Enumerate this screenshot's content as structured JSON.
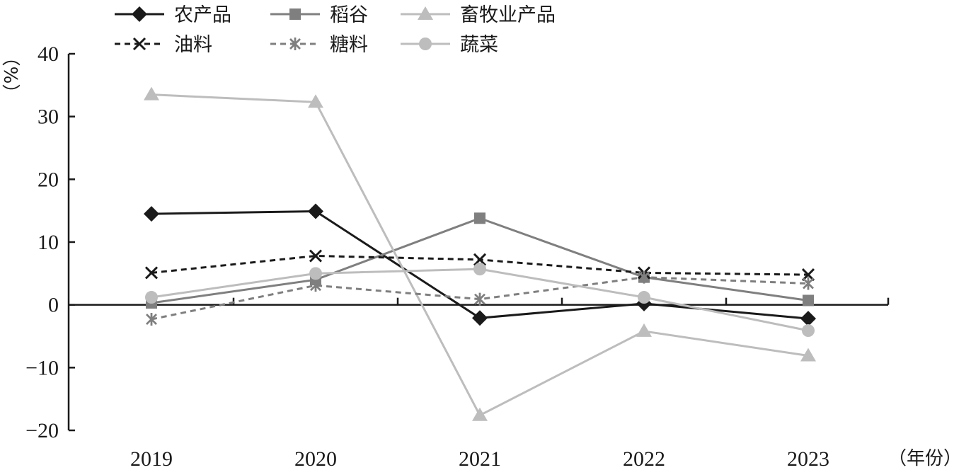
{
  "chart_data": {
    "type": "line",
    "title": "",
    "xlabel": "（年份）",
    "ylabel": "（%）",
    "categories": [
      "2019",
      "2020",
      "2021",
      "2022",
      "2023"
    ],
    "ylim": [
      -20,
      40
    ],
    "yticks": [
      "40",
      "30",
      "20",
      "10",
      "0",
      "−10",
      "−20"
    ],
    "ytick_values": [
      40,
      30,
      20,
      10,
      0,
      -10,
      -20
    ],
    "grid": false,
    "legend_position": "top-left",
    "series": [
      {
        "name": "农产品",
        "values": [
          14.5,
          14.9,
          -2.1,
          0.2,
          -2.2
        ],
        "color": "#1a1a1a",
        "dash": "solid",
        "marker": "diamond"
      },
      {
        "name": "稻谷",
        "values": [
          0.3,
          4.0,
          13.8,
          4.4,
          0.7
        ],
        "color": "#7f7f7f",
        "dash": "solid",
        "marker": "square"
      },
      {
        "name": "畜牧业产品",
        "values": [
          33.5,
          32.3,
          -17.6,
          -4.2,
          -8.1
        ],
        "color": "#bdbdbd",
        "dash": "solid",
        "marker": "triangle"
      },
      {
        "name": "油料",
        "values": [
          5.1,
          7.8,
          7.2,
          5.1,
          4.8
        ],
        "color": "#1a1a1a",
        "dash": "dashed",
        "marker": "x"
      },
      {
        "name": "糖料",
        "values": [
          -2.3,
          3.1,
          0.9,
          4.4,
          3.4
        ],
        "color": "#7f7f7f",
        "dash": "dashed",
        "marker": "asterisk"
      },
      {
        "name": "蔬菜",
        "values": [
          1.2,
          5.0,
          5.7,
          1.2,
          -4.1
        ],
        "color": "#bdbdbd",
        "dash": "solid",
        "marker": "circle"
      }
    ]
  }
}
